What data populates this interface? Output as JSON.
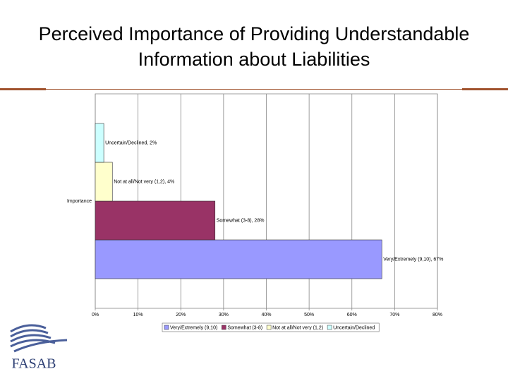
{
  "logo": "FASAB",
  "chart_data": {
    "type": "hbar",
    "title": "Perceived Importance of Providing Understandable Information about Liabilities",
    "categories": [
      "Importance"
    ],
    "series": [
      {
        "name": "Very/Extremely (9,10)",
        "color": "#9999ff",
        "values": [
          67
        ],
        "value_labels": [
          "Very/Extremely (9,10), 67%"
        ]
      },
      {
        "name": "Somewhat (3-8)",
        "color": "#993366",
        "values": [
          28
        ],
        "value_labels": [
          "Somewhat (3-8), 28%"
        ]
      },
      {
        "name": "Not at all/Not very (1,2)",
        "color": "#ffffcc",
        "values": [
          4
        ],
        "value_labels": [
          "Not at all/Not very (1,2), 4%"
        ]
      },
      {
        "name": "Uncertain/Declined",
        "color": "#ccffff",
        "values": [
          2
        ],
        "value_labels": [
          "Uncertain/Declined, 2%"
        ]
      }
    ],
    "xlim": [
      0,
      80
    ],
    "xticks": [
      {
        "value": 0,
        "label": "0%"
      },
      {
        "value": 10,
        "label": "10%"
      },
      {
        "value": 20,
        "label": "20%"
      },
      {
        "value": 30,
        "label": "30%"
      },
      {
        "value": 40,
        "label": "40%"
      },
      {
        "value": 50,
        "label": "50%"
      },
      {
        "value": 60,
        "label": "60%"
      },
      {
        "value": 70,
        "label": "70%"
      },
      {
        "value": 80,
        "label": "80%"
      }
    ],
    "grid": true,
    "legend": "bottom"
  }
}
